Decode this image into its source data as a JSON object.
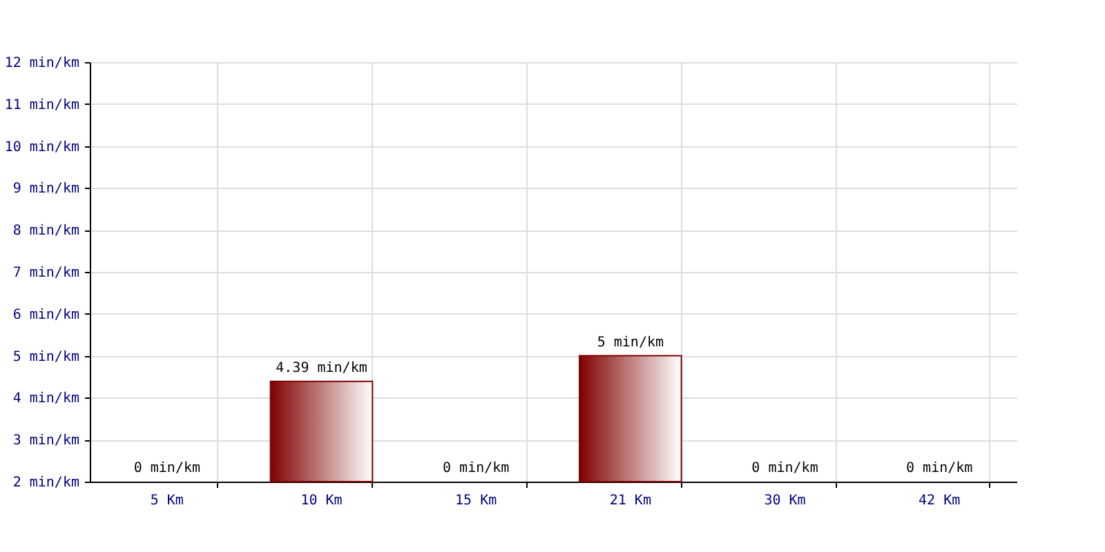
{
  "chart_data": {
    "type": "bar",
    "categories": [
      "5 Km",
      "10 Km",
      "15 Km",
      "21 Km",
      "30 Km",
      "42 Km"
    ],
    "values": [
      null,
      4.39,
      null,
      5,
      null,
      null
    ],
    "value_labels": [
      "0 min/km",
      "4.39 min/km",
      "0 min/km",
      "5 min/km",
      "0 min/km",
      "0 min/km"
    ],
    "color": "#800000",
    "ylim": [
      2,
      12
    ],
    "yticks": [
      {
        "value": 2,
        "label": "2 min/km"
      },
      {
        "value": 3,
        "label": "3 min/km"
      },
      {
        "value": 4,
        "label": "4 min/km"
      },
      {
        "value": 5,
        "label": "5 min/km"
      },
      {
        "value": 6,
        "label": "6 min/km"
      },
      {
        "value": 7,
        "label": "7 min/km"
      },
      {
        "value": 8,
        "label": "8 min/km"
      },
      {
        "value": 9,
        "label": "9 min/km"
      },
      {
        "value": 10,
        "label": "10 min/km"
      },
      {
        "value": 11,
        "label": "11 min/km"
      },
      {
        "value": 12,
        "label": "12 min/km"
      }
    ],
    "grid": true
  }
}
